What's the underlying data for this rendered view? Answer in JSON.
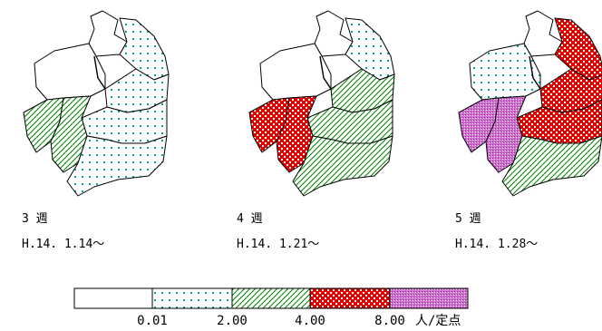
{
  "maps": [
    {
      "week_label": "3 週",
      "date_label": "H.14. 1.14～",
      "regions": [
        "white",
        "white",
        "dots",
        "dots",
        "dots",
        "hatch",
        "hatch",
        "dots"
      ]
    },
    {
      "week_label": "4 週",
      "date_label": "H.14. 1.21～",
      "regions": [
        "white",
        "white",
        "dots",
        "hatch",
        "hatch",
        "red",
        "red",
        "hatch"
      ]
    },
    {
      "week_label": "5 週",
      "date_label": "H.14. 1.28～",
      "regions": [
        "white",
        "dots",
        "red",
        "red",
        "red",
        "purple",
        "purple",
        "hatch"
      ]
    }
  ],
  "legend": {
    "categories": [
      {
        "fill": "white",
        "range": [
          0,
          0.01
        ]
      },
      {
        "fill": "dots",
        "range": [
          0.01,
          2.0
        ]
      },
      {
        "fill": "hatch",
        "range": [
          2.0,
          4.0
        ]
      },
      {
        "fill": "red",
        "range": [
          4.0,
          8.0
        ]
      },
      {
        "fill": "purple",
        "range": [
          8.0,
          null
        ]
      }
    ],
    "thresholds": [
      "0.01",
      "2.00",
      "4.00",
      "8.00"
    ],
    "unit": "人/定点"
  },
  "colors": {
    "dots": "#00a0a0",
    "hatch": "#008000",
    "red": "#e00000",
    "purple": "#c040c0",
    "outline": "#000000"
  }
}
